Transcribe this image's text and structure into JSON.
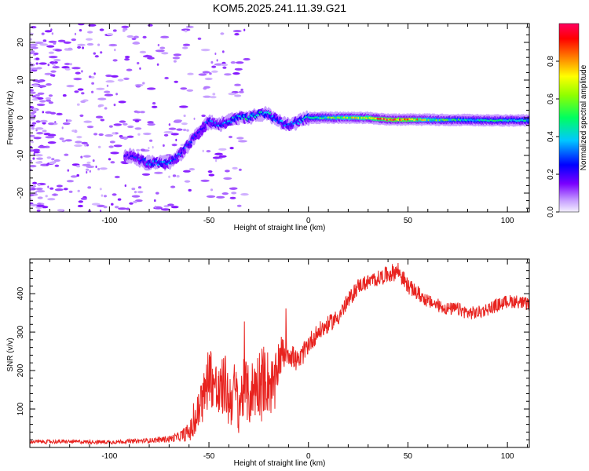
{
  "figure": {
    "title": "KOM5.2025.241.11.39.G21"
  },
  "chart_data": [
    {
      "type": "heatmap",
      "title": "KOM5.2025.241.11.39.G21",
      "xlabel": "Height of straight line (km)",
      "ylabel": "Frequency (Hz)",
      "xlim": [
        -140,
        111
      ],
      "ylim": [
        -25,
        25
      ],
      "xticks": [
        -100,
        -50,
        0,
        50,
        100
      ],
      "xtick_labels": [
        "-100",
        "-50",
        "0",
        "50",
        "100"
      ],
      "yticks": [
        -20,
        -10,
        0,
        10,
        20
      ],
      "ytick_labels": [
        "-20",
        "-10",
        "0",
        "10",
        "20"
      ],
      "colorbar": {
        "label": "Normalized spectral amplitude",
        "range": [
          0,
          1
        ],
        "ticks": [
          0.0,
          0.2,
          0.4,
          0.6,
          0.8
        ],
        "tick_labels": [
          "0.0",
          "0.2",
          "0.4",
          "0.6",
          "0.8"
        ]
      },
      "ridge": {
        "description": "frequency of main signal vs height",
        "x": [
          -90,
          -80,
          -70,
          -65,
          -60,
          -55,
          -50,
          -45,
          -40,
          -35,
          -30,
          -25,
          -20,
          -15,
          -10,
          -5,
          0,
          10,
          20,
          30,
          40,
          50,
          60,
          70,
          80,
          90,
          100,
          111
        ],
        "y": [
          -10,
          -12,
          -12,
          -10,
          -7,
          -4,
          -1,
          -2,
          -1,
          0,
          0,
          1,
          1,
          -1,
          -2,
          -1,
          0,
          0,
          0,
          0,
          -0.5,
          -0.5,
          -0.5,
          -0.6,
          -0.6,
          -0.7,
          -0.7,
          -0.7
        ],
        "amplitude": [
          0.2,
          0.35,
          0.35,
          0.3,
          0.3,
          0.25,
          0.3,
          0.3,
          0.35,
          0.4,
          0.45,
          0.45,
          0.4,
          0.35,
          0.3,
          0.35,
          0.45,
          0.55,
          0.65,
          0.75,
          0.9,
          0.9,
          0.6,
          0.5,
          0.45,
          0.45,
          0.45,
          0.45
        ]
      }
    },
    {
      "type": "line",
      "xlabel": "Height of straight line (km)",
      "ylabel": "SNR (v/v)",
      "xlim": [
        -140,
        111
      ],
      "ylim": [
        0,
        490
      ],
      "xticks": [
        -100,
        -50,
        0,
        50,
        100
      ],
      "xtick_labels": [
        "-100",
        "-50",
        "0",
        "50",
        "100"
      ],
      "yticks": [
        100,
        200,
        300,
        400
      ],
      "ytick_labels": [
        "100",
        "200",
        "300",
        "400"
      ],
      "series": [
        {
          "name": "SNR",
          "color": "#e8231f",
          "x": [
            -140,
            -120,
            -100,
            -80,
            -70,
            -65,
            -60,
            -57,
            -55,
            -52,
            -50,
            -47,
            -45,
            -42,
            -40,
            -37,
            -35,
            -32,
            -30,
            -27,
            -25,
            -22,
            -20,
            -17,
            -15,
            -12,
            -10,
            -7,
            -5,
            -2,
            0,
            5,
            10,
            15,
            20,
            25,
            30,
            35,
            40,
            45,
            50,
            55,
            60,
            65,
            70,
            75,
            80,
            85,
            90,
            95,
            100,
            105,
            111
          ],
          "y": [
            15,
            15,
            14,
            18,
            22,
            28,
            40,
            60,
            100,
            140,
            200,
            160,
            130,
            170,
            120,
            150,
            110,
            160,
            130,
            160,
            170,
            180,
            170,
            150,
            230,
            250,
            250,
            230,
            220,
            250,
            270,
            300,
            320,
            340,
            380,
            420,
            430,
            440,
            450,
            460,
            420,
            400,
            380,
            370,
            360,
            360,
            350,
            350,
            360,
            370,
            380,
            380,
            370
          ],
          "spread": [
            10,
            10,
            10,
            12,
            18,
            25,
            50,
            80,
            120,
            140,
            160,
            160,
            160,
            160,
            160,
            150,
            150,
            160,
            160,
            170,
            180,
            180,
            170,
            150,
            120,
            90,
            70,
            60,
            55,
            55,
            55,
            50,
            45,
            45,
            45,
            40,
            40,
            40,
            45,
            50,
            40,
            40,
            35,
            35,
            35,
            35,
            35,
            35,
            35,
            35,
            35,
            35,
            35
          ]
        }
      ]
    }
  ]
}
